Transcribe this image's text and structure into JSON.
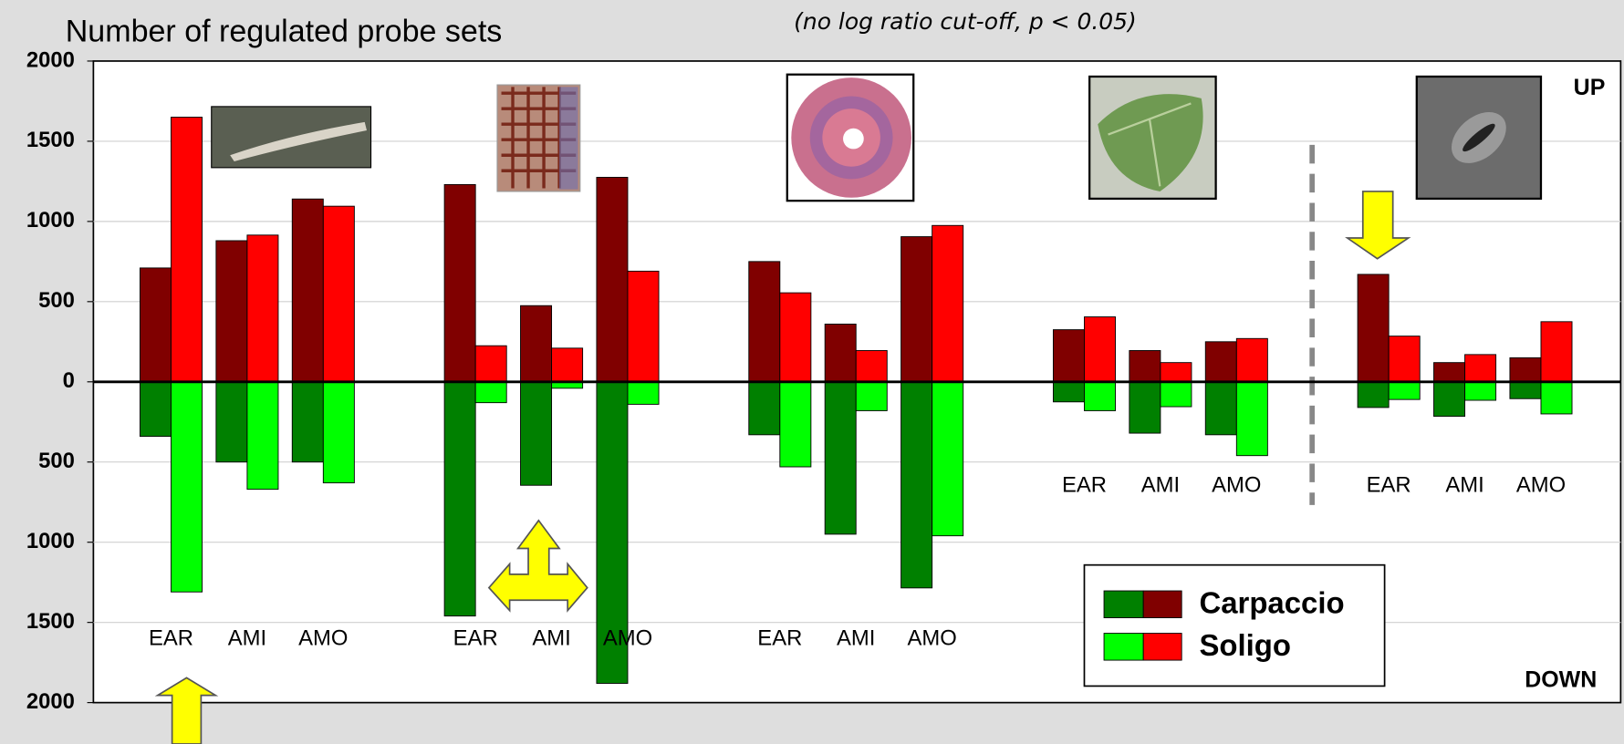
{
  "chart_data": {
    "type": "bar",
    "title": "Number of regulated probe sets",
    "subtitle": "(no log ratio cut-off, p < 0.05)",
    "up_label": "UP",
    "down_label": "DOWN",
    "categories": [
      "EAR",
      "AMI",
      "AMO",
      "EAR",
      "AMI",
      "AMO",
      "EAR",
      "AMI",
      "AMO",
      "EAR",
      "AMI",
      "AMO",
      "EAR",
      "AMI",
      "AMO"
    ],
    "series": [
      {
        "name": "Carpaccio",
        "color": "#800000",
        "down_color": "#008000",
        "values": [
          710,
          880,
          1140,
          1230,
          475,
          1275,
          750,
          360,
          905,
          325,
          195,
          250,
          670,
          120,
          150
        ],
        "down_values": [
          -340,
          -500,
          -500,
          -1460,
          -645,
          -1880,
          -330,
          -950,
          -1285,
          -125,
          -320,
          -330,
          -160,
          -215,
          -105
        ]
      },
      {
        "name": "Soligo",
        "color": "#ff0000",
        "down_color": "#00ff00",
        "values": [
          1650,
          915,
          1095,
          225,
          210,
          690,
          555,
          195,
          975,
          405,
          120,
          270,
          285,
          170,
          375
        ],
        "down_values": [
          -1310,
          -670,
          -630,
          -130,
          -40,
          -140,
          -530,
          -180,
          -960,
          -180,
          -155,
          -460,
          -110,
          -115,
          -200
        ]
      }
    ],
    "ylim": [
      -2000,
      2000
    ],
    "yticks": [
      {
        "value": -2000,
        "label": "2000"
      },
      {
        "value": -1500,
        "label": "1500"
      },
      {
        "value": -1000,
        "label": "1000"
      },
      {
        "value": -500,
        "label": "500"
      },
      0,
      500,
      1000,
      1500,
      2000
    ],
    "grid": true
  }
}
